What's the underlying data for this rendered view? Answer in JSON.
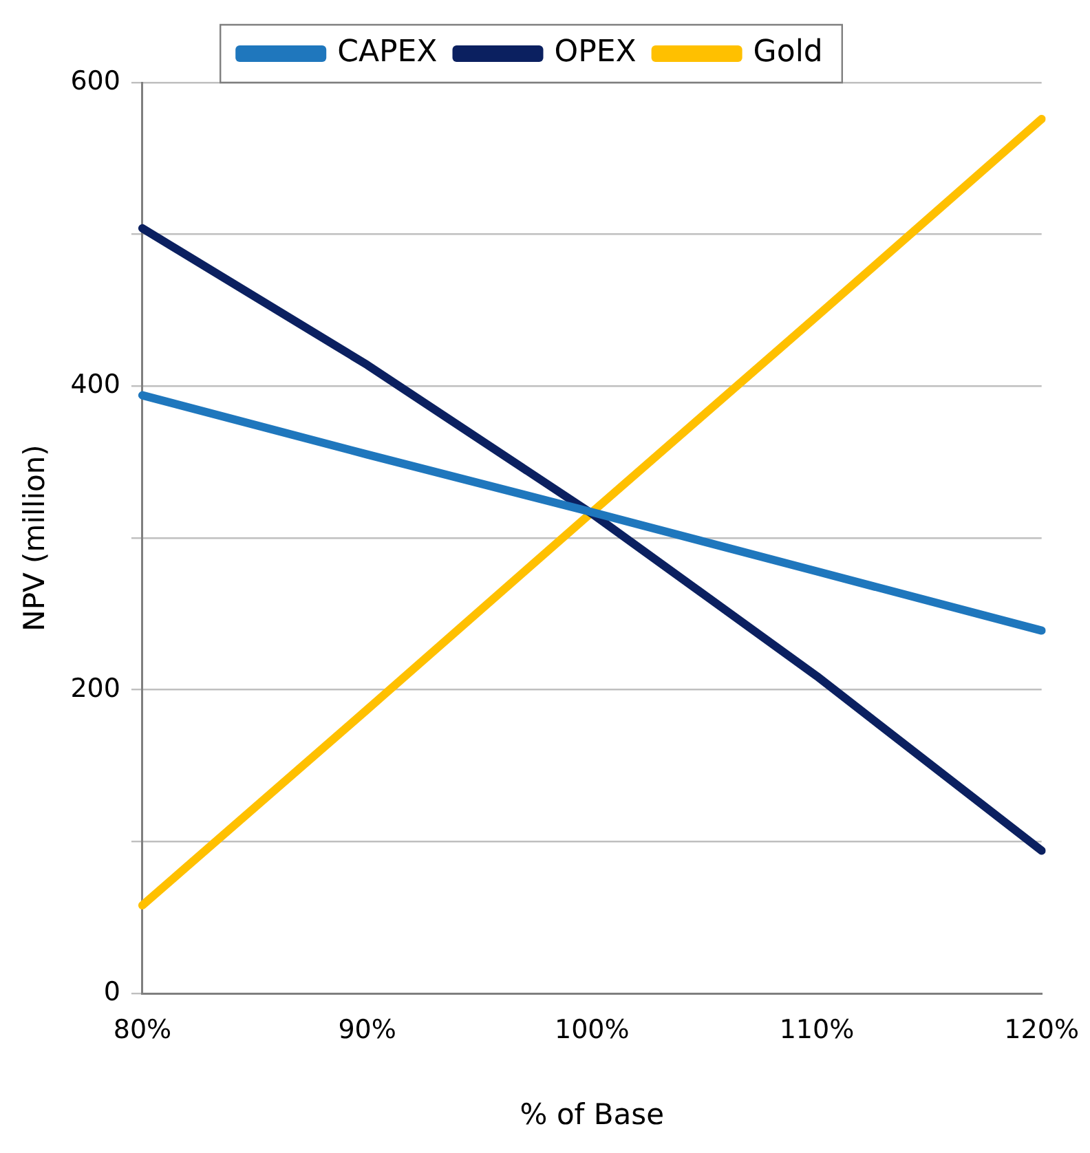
{
  "chart_data": {
    "type": "line",
    "xlabel": "% of Base",
    "ylabel": "NPV (million)",
    "categories": [
      "80%",
      "90%",
      "100%",
      "110%",
      "120%"
    ],
    "series": [
      {
        "name": "CAPEX",
        "color": "#1f77bd",
        "values": [
          394,
          355,
          317,
          278,
          239
        ]
      },
      {
        "name": "OPEX",
        "color": "#0b2060",
        "values": [
          504,
          414,
          316,
          209,
          94
        ]
      },
      {
        "name": "Gold",
        "color": "#ffc000",
        "values": [
          58,
          187,
          317,
          446,
          576
        ]
      }
    ],
    "ylim": [
      0,
      600
    ],
    "yticks": [
      0,
      {
        "value": 100,
        "label": null
      },
      200,
      {
        "value": 300,
        "label": null
      },
      400,
      {
        "value": 500,
        "label": null
      },
      600
    ],
    "grid": "y",
    "legend": "top",
    "marker": "none",
    "line_style": "solid"
  }
}
